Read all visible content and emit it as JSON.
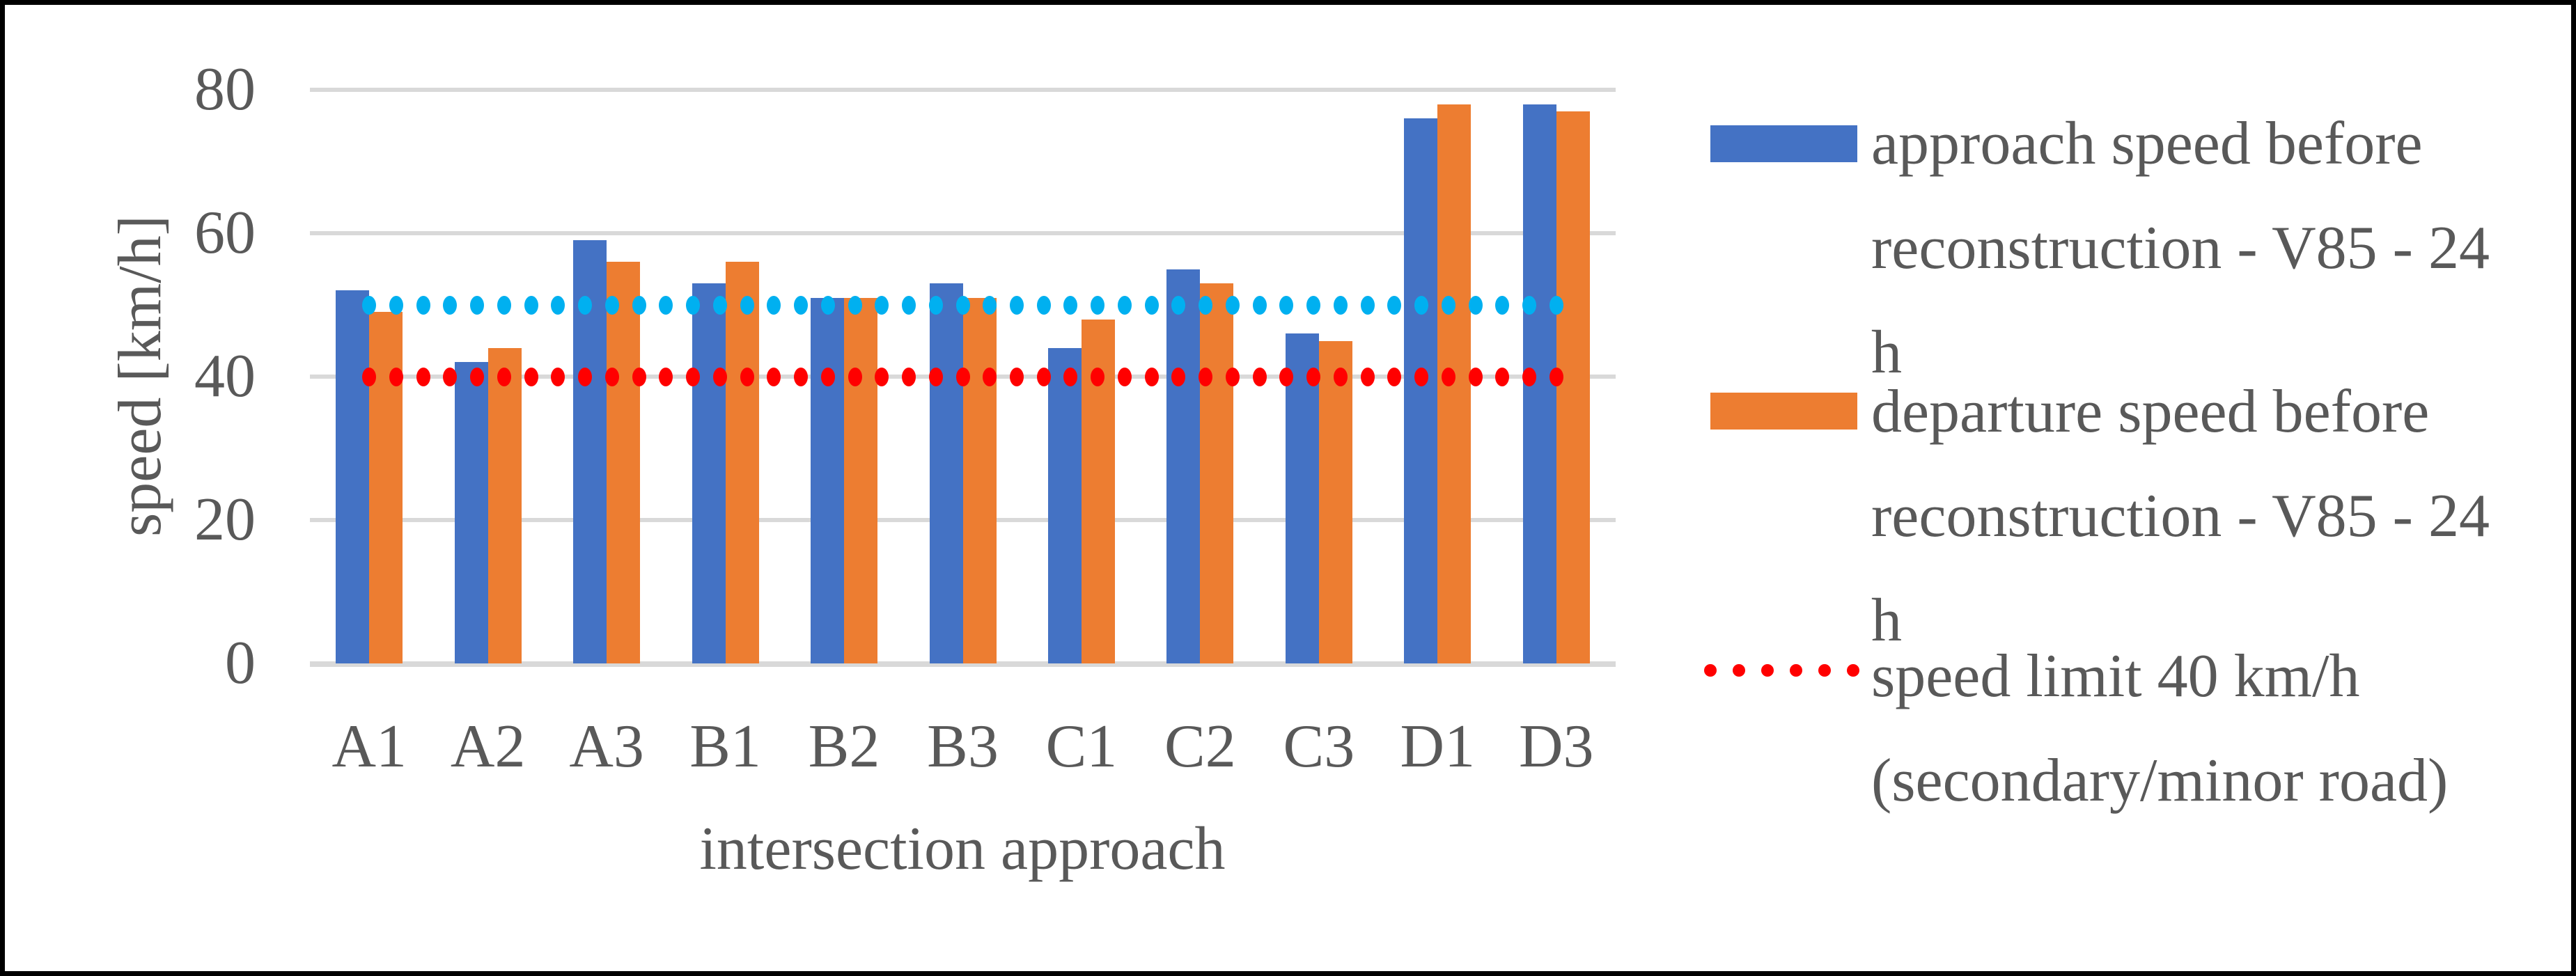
{
  "chart_data": {
    "type": "bar",
    "categories": [
      "A1",
      "A2",
      "A3",
      "B1",
      "B2",
      "B3",
      "C1",
      "C2",
      "C3",
      "D1",
      "D3"
    ],
    "series": [
      {
        "name": "approach speed before reconstruction - V85 - 24 h",
        "color": "#4472C4",
        "values": [
          52,
          42,
          59,
          53,
          51,
          53,
          44,
          55,
          46,
          76,
          78
        ]
      },
      {
        "name": "departure speed before reconstruction - V85 - 24 h",
        "color": "#ED7D31",
        "values": [
          49,
          44,
          56,
          56,
          51,
          51,
          48,
          53,
          45,
          78,
          77
        ]
      }
    ],
    "reference_lines": [
      {
        "value": 50,
        "color": "#00B0F0",
        "style": "dotted"
      },
      {
        "value": 40,
        "color": "#FF0000",
        "style": "dotted",
        "label": "speed limit 40 km/h (secondary/minor road)"
      }
    ],
    "xlabel": "intersection approach",
    "ylabel": "speed [km/h]",
    "ylim": [
      0,
      80
    ],
    "yticks": [
      0,
      20,
      40,
      60,
      80
    ],
    "grid": true,
    "legend_position": "right"
  },
  "legend": {
    "entries": [
      {
        "swatch": "blue-rect",
        "color": "#4472C4",
        "lines": [
          "approach speed before",
          "reconstruction - V85 - 24",
          "h"
        ]
      },
      {
        "swatch": "orange-rect",
        "color": "#ED7D31",
        "lines": [
          "departure speed before",
          "reconstruction - V85 - 24",
          "h"
        ]
      },
      {
        "swatch": "red-dotted-line",
        "color": "#FF0000",
        "lines": [
          "speed limit 40 km/h",
          "(secondary/minor road)"
        ]
      }
    ]
  },
  "colors": {
    "grid": "#D9D9D9",
    "text": "#595959",
    "border": "#000000",
    "background": "#FFFFFF"
  }
}
